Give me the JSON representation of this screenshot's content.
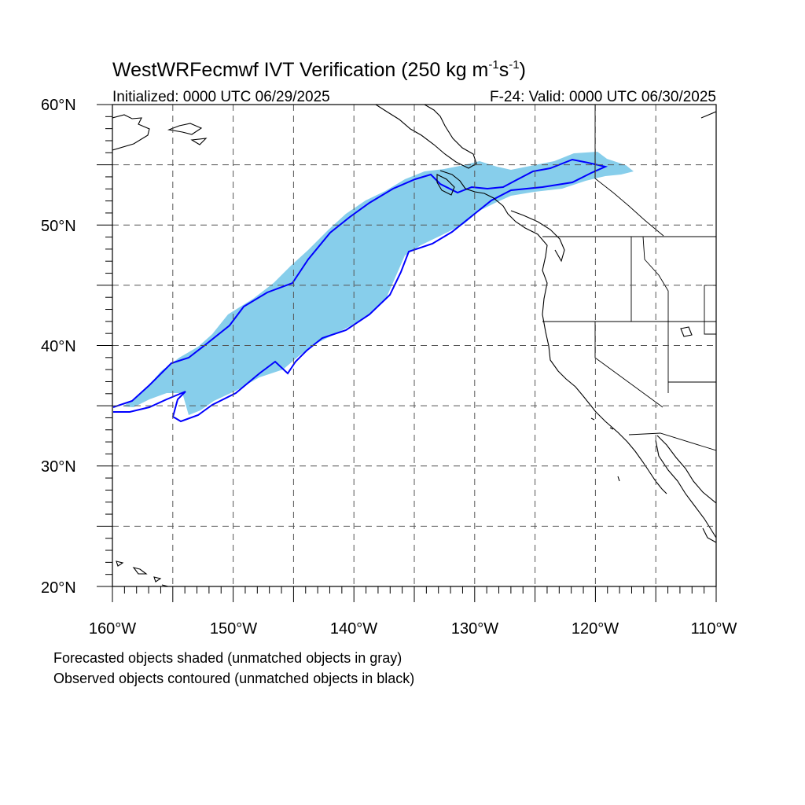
{
  "title": {
    "main": "WestWRFecmwf IVT Verification (250 kg m",
    "sup1": "-1",
    "mid": "s",
    "sup2": "-1",
    "end": ")"
  },
  "subtitle_left": "Initialized: 0000 UTC 06/29/2025",
  "subtitle_right": "F-24: Valid: 0000 UTC 06/30/2025",
  "map": {
    "lon_range": [
      -160,
      -110
    ],
    "lat_range": [
      20,
      60
    ],
    "grid_spacing_deg": 5,
    "grid_style": "dashed",
    "lat_labels": [
      "60°N",
      "50°N",
      "40°N",
      "30°N",
      "20°N"
    ],
    "lon_labels": [
      "160°W",
      "150°W",
      "140°W",
      "130°W",
      "120°W",
      "110°W"
    ],
    "forecast_fill_color": "#87ceeb",
    "observed_contour_color": "#0000ff",
    "coastline_color": "#000000"
  },
  "legend": {
    "line1": "Forecasted objects shaded (unmatched objects in gray)",
    "line2": "Observed objects contoured (unmatched objects in black)"
  }
}
